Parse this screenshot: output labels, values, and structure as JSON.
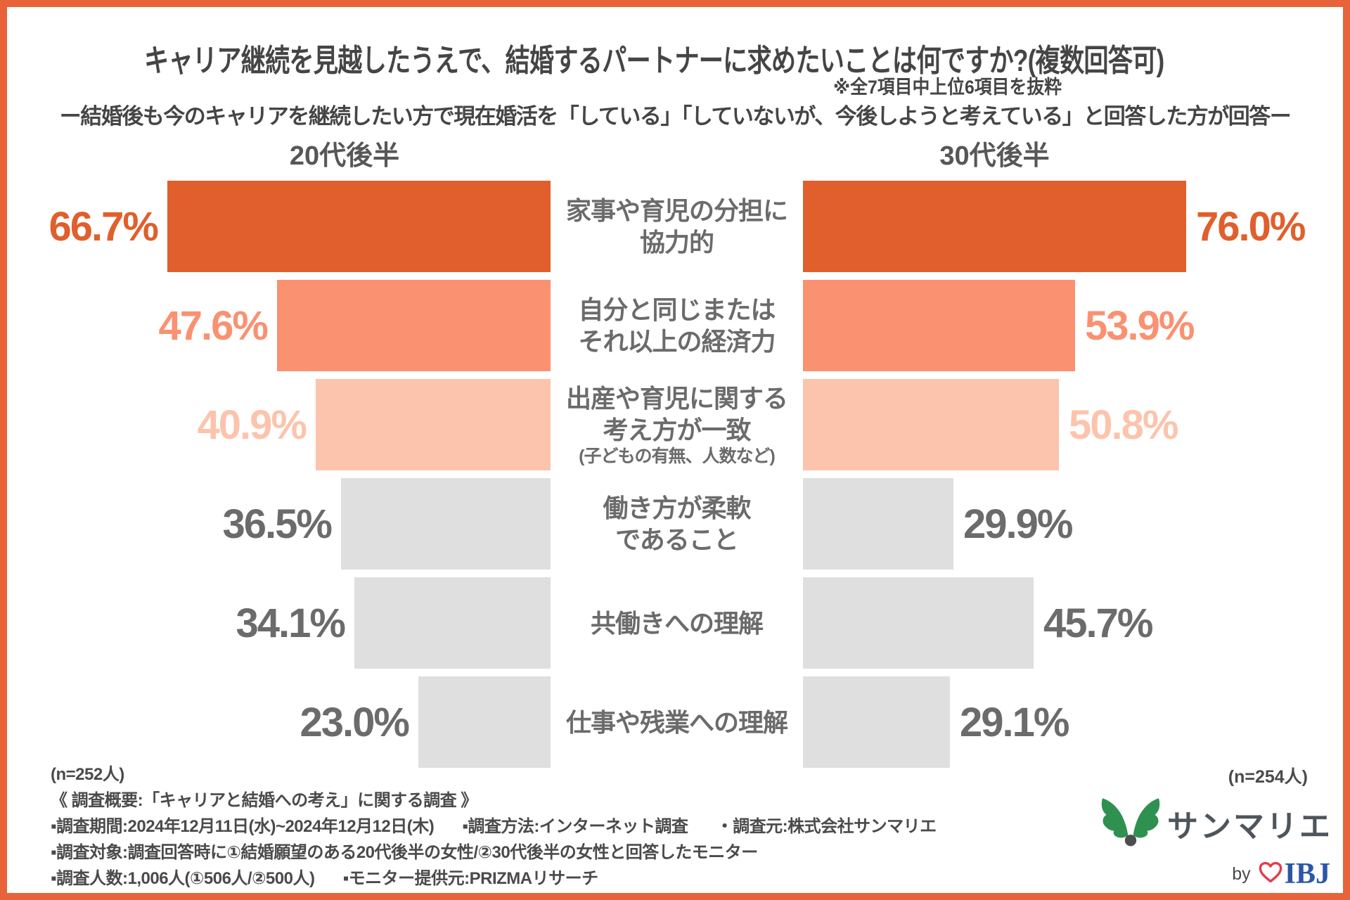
{
  "header": {
    "title": "キャリア継続を見越したうえで、結婚するパートナーに求めたいことは何ですか?(複数回答可)",
    "note": "※全7項目中上位6項目を抜粋",
    "subtitle": "ー結婚後も今のキャリアを継続したい方で現在婚活を「している」「していないが、今後しようと考えている」と回答した方が回答ー"
  },
  "chart_data": {
    "type": "bar",
    "layout": "butterfly",
    "groups": [
      {
        "label": "20代後半",
        "n_label": "(n=252人)",
        "axis_max": 66.7
      },
      {
        "label": "30代後半",
        "n_label": "(n=254人)",
        "axis_max": 76.0
      }
    ],
    "categories": [
      {
        "lines": [
          "家事や育児の分担に",
          "協力的"
        ]
      },
      {
        "lines": [
          "自分と同じまたは",
          "それ以上の経済力"
        ]
      },
      {
        "lines": [
          "出産や育児に関する",
          "考え方が一致"
        ],
        "note": "(子どもの有無、人数など)"
      },
      {
        "lines": [
          "働き方が柔軟",
          "であること"
        ]
      },
      {
        "lines": [
          "共働きへの理解"
        ]
      },
      {
        "lines": [
          "仕事や残業への理解"
        ]
      }
    ],
    "series": [
      {
        "name": "20代後半",
        "values": [
          66.7,
          47.6,
          40.9,
          36.5,
          34.1,
          23.0
        ]
      },
      {
        "name": "30代後半",
        "values": [
          76.0,
          53.9,
          50.8,
          29.9,
          45.7,
          29.1
        ]
      }
    ],
    "value_suffix": "%",
    "row_colors": [
      "#E05F2C",
      "#FA9171",
      "#FCC4AC",
      "#DFDFDF",
      "#DFDFDF",
      "#DFDFDF"
    ],
    "value_label_colors": [
      "#E05F2C",
      "#FA9171",
      "#FCC4AC",
      "#6B6B6B",
      "#6B6B6B",
      "#6B6B6B"
    ],
    "grid": false,
    "legend_position": "column-headers"
  },
  "footer": {
    "survey_title": "《 調査概要:「キャリアと結婚への考え」に関する調査 》",
    "line_period": "▪調査期間:2024年12月11日(水)~2024年12月12日(木)",
    "line_method": "▪調査方法:インターネット調査",
    "line_source": "・調査元:株式会社サンマリエ",
    "line_target": "▪調査対象:調査回答時に①結婚願望のある20代後半の女性/②30代後半の女性と回答したモニター",
    "line_count": "▪調査人数:1,006人(①506人/②500人)",
    "line_monitor": "▪モニター提供元:PRIZMAリサーチ"
  },
  "logo": {
    "brand": "サンマリエ",
    "by": "by",
    "ibj": "IBJ",
    "leaf_color": "#2E9150",
    "dot_color": "#4D4D4D",
    "heart_color": "#E23B4E",
    "ibj_color": "#2B57A7"
  },
  "frame": {
    "border_color": "#E8633A",
    "background": "#FFFFFF"
  }
}
